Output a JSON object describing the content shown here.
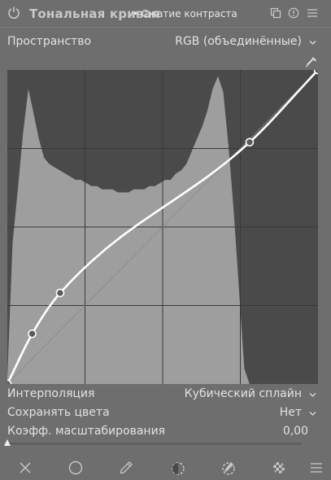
{
  "header": {
    "title": "Тональная кривая",
    "label": "• Сжатие контраста",
    "icons": [
      "power-icon",
      "presets-icon",
      "reset-icon",
      "menu-icon"
    ]
  },
  "space": {
    "label": "Пространство",
    "value": "RGB (объединённые)"
  },
  "curve": {
    "x_range": [
      0,
      1
    ],
    "y_range": [
      0,
      1
    ],
    "grid_divisions": 4,
    "nodes": [
      {
        "x": 0.0,
        "y": 0.0
      },
      {
        "x": 0.08,
        "y": 0.16
      },
      {
        "x": 0.17,
        "y": 0.29
      },
      {
        "x": 0.78,
        "y": 0.77
      },
      {
        "x": 1.0,
        "y": 1.0
      }
    ],
    "histogram": [
      0.02,
      0.45,
      0.62,
      0.8,
      0.94,
      0.86,
      0.78,
      0.72,
      0.7,
      0.69,
      0.68,
      0.67,
      0.66,
      0.65,
      0.65,
      0.64,
      0.63,
      0.63,
      0.62,
      0.62,
      0.62,
      0.61,
      0.61,
      0.61,
      0.62,
      0.62,
      0.62,
      0.63,
      0.63,
      0.64,
      0.65,
      0.65,
      0.67,
      0.68,
      0.7,
      0.74,
      0.78,
      0.82,
      0.87,
      0.94,
      0.98,
      0.93,
      0.76,
      0.55,
      0.3,
      0.05,
      0.0,
      0.0,
      0.0,
      0.0,
      0.0,
      0.0,
      0.0,
      0.0,
      0.0,
      0.0,
      0.0,
      0.0,
      0.0,
      0.0
    ],
    "colors": {
      "background": "#4a4a4a",
      "histogram": "#9e9e9e",
      "grid": "#383838",
      "diagonal": "#8a8a8a",
      "curve": "#ffffff",
      "node_fill": "#5a5a5a"
    }
  },
  "interpolation": {
    "label": "Интерполяция",
    "value": "Кубический сплайн"
  },
  "preserve_colors": {
    "label": "Сохранять цвета",
    "value": "Нет"
  },
  "scale_factor": {
    "label": "Коэфф. масштабирования",
    "value": "0,00",
    "level": 0.0
  },
  "toolbar": {
    "icons": [
      "close-icon",
      "circle-icon",
      "pencil-icon",
      "drawn-mask-icon",
      "parametric-mask-icon",
      "raster-mask-icon",
      "menu-icon"
    ]
  }
}
